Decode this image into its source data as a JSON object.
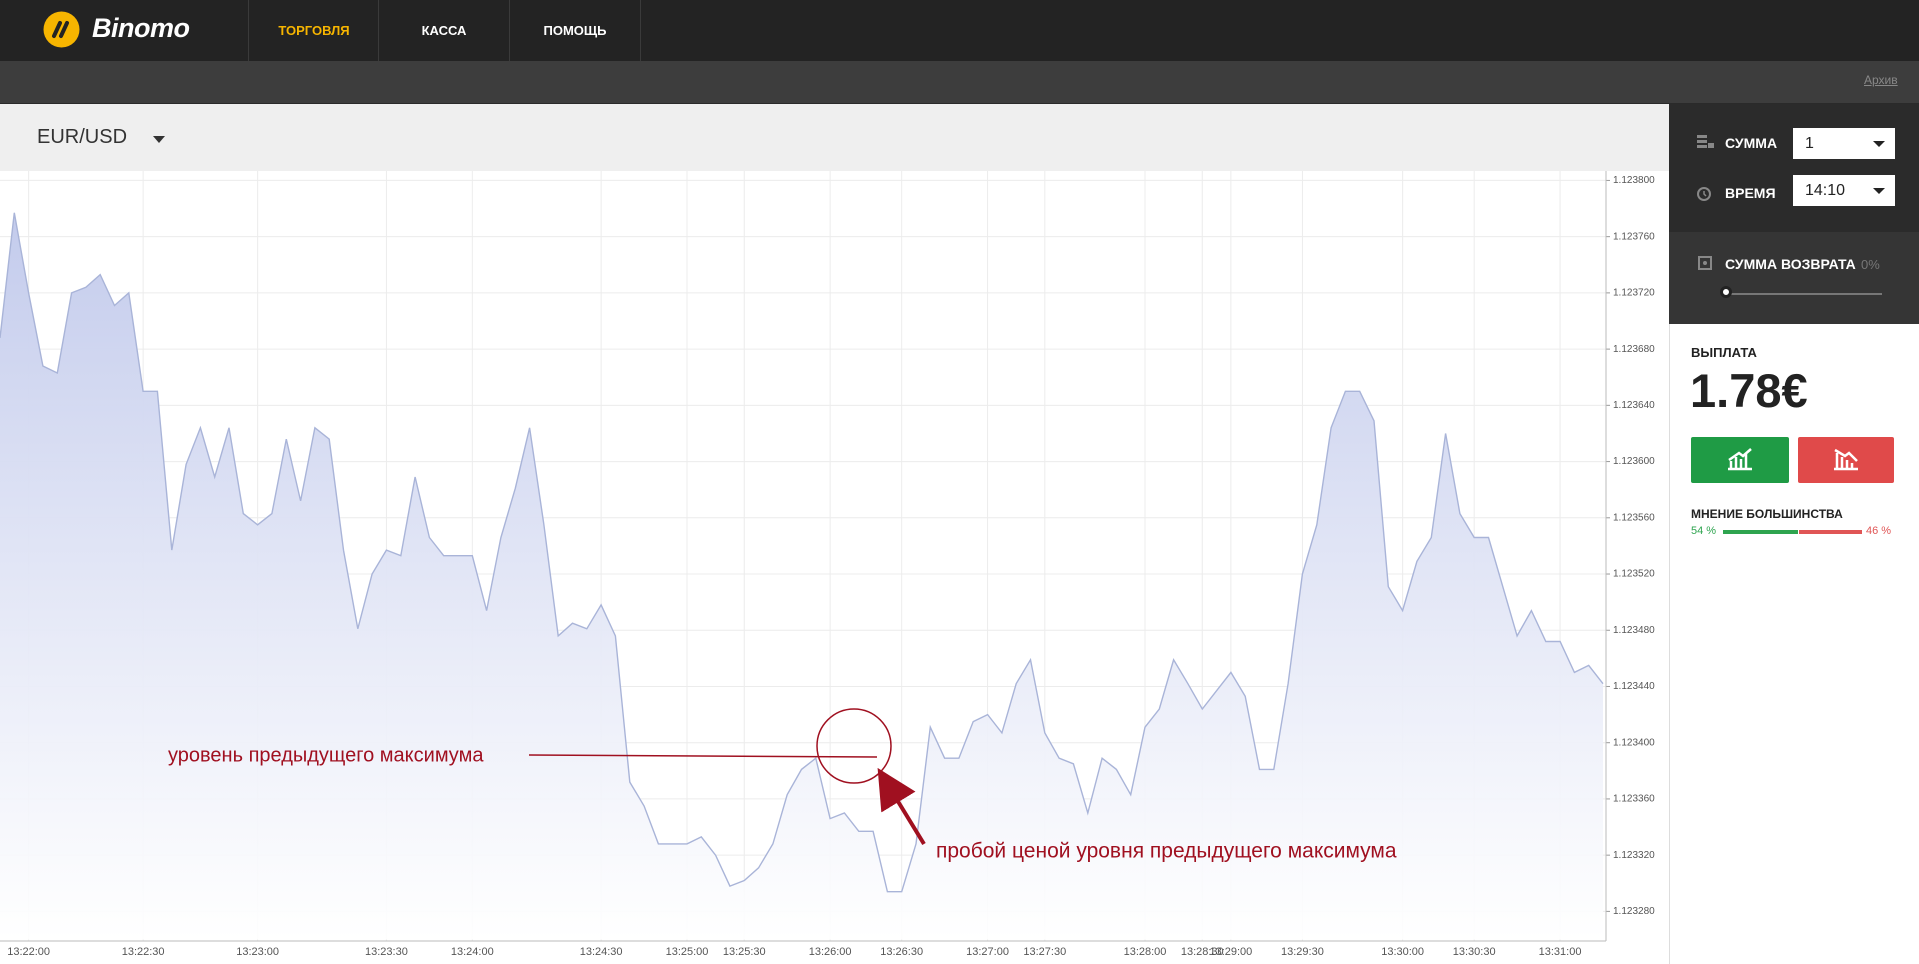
{
  "header": {
    "logo": "Binomo",
    "nav": [
      "ТОРГОВЛЯ",
      "КАССА",
      "ПОМОЩЬ"
    ],
    "archive": "Архив"
  },
  "asset": "EUR/USD",
  "chart_data": {
    "type": "area",
    "color": "#a9b4d8",
    "grid": true,
    "x": [
      null,
      null,
      "13:22:00",
      null,
      null,
      null,
      null,
      null,
      null,
      null,
      "13:22:30",
      null,
      null,
      null,
      null,
      null,
      null,
      null,
      "13:23:00",
      null,
      null,
      null,
      null,
      null,
      null,
      null,
      null,
      "13:23:30",
      null,
      null,
      null,
      null,
      null,
      "13:24:00",
      null,
      null,
      null,
      null,
      null,
      null,
      null,
      null,
      "13:24:30",
      null,
      null,
      null,
      null,
      null,
      "13:25:00",
      null,
      null,
      null,
      "13:25:30",
      null,
      null,
      null,
      null,
      null,
      "13:26:00",
      null,
      null,
      null,
      null,
      "13:26:30",
      null,
      null,
      null,
      null,
      null,
      "13:27:00",
      null,
      null,
      null,
      "13:27:30",
      null,
      null,
      null,
      null,
      null,
      null,
      "13:28:00",
      null,
      null,
      null,
      "13:28:30",
      null,
      "13:29:00",
      null,
      null,
      null,
      null,
      "13:29:30",
      null,
      null,
      null,
      null,
      null,
      null,
      "13:30:00",
      null,
      null,
      null,
      null,
      "13:30:30",
      null,
      null,
      null,
      null,
      null,
      "13:31:00",
      null,
      null,
      null
    ],
    "values": [
      1.123688,
      1.123777,
      1.12372,
      1.123668,
      1.123663,
      1.12372,
      1.123724,
      1.123733,
      1.123711,
      1.12372,
      1.12365,
      1.12365,
      1.123537,
      1.123598,
      1.123624,
      1.123589,
      1.123624,
      1.123563,
      1.123555,
      1.123563,
      1.123616,
      1.123572,
      1.123624,
      1.123616,
      1.123537,
      1.123481,
      1.12352,
      1.123537,
      1.123533,
      1.123589,
      1.123546,
      1.123533,
      1.123533,
      1.123533,
      1.123494,
      1.123546,
      1.123581,
      1.123624,
      1.123555,
      1.123476,
      1.123485,
      1.123481,
      1.123498,
      1.123476,
      1.123372,
      1.123355,
      1.123328,
      1.123328,
      1.123328,
      1.123333,
      1.12332,
      1.123298,
      1.123302,
      1.123311,
      1.123328,
      1.123363,
      1.123381,
      1.123389,
      1.123346,
      1.12335,
      1.123337,
      1.123337,
      1.123294,
      1.123294,
      1.123328,
      1.123411,
      1.123389,
      1.123389,
      1.123415,
      1.12342,
      1.123407,
      1.123442,
      1.123459,
      1.123407,
      1.123389,
      1.123385,
      1.12335,
      1.123389,
      1.123381,
      1.123363,
      1.123411,
      1.123424,
      1.123459,
      1.123442,
      1.123424,
      1.123437,
      1.12345,
      1.123433,
      1.123381,
      1.123381,
      1.123442,
      1.12352,
      1.123555,
      1.123624,
      1.12365,
      1.12365,
      1.123629,
      1.123511,
      1.123494,
      1.123529,
      1.123546,
      1.12362,
      1.123563,
      1.123546,
      1.123546,
      1.123511,
      1.123476,
      1.123494,
      1.123472,
      1.123472,
      1.12345,
      1.123455,
      1.123442
    ],
    "ylim": [
      1.12326,
      1.123805
    ],
    "yticks": [
      {
        "value": 1.1238,
        "label": "1.123800"
      },
      {
        "value": 1.12376,
        "label": "1.123760"
      },
      {
        "value": 1.12372,
        "label": "1.123720"
      },
      {
        "value": 1.12368,
        "label": "1.123680"
      },
      {
        "value": 1.12364,
        "label": "1.123640"
      },
      {
        "value": 1.1236,
        "label": "1.123600"
      },
      {
        "value": 1.12356,
        "label": "1.123560"
      },
      {
        "value": 1.12352,
        "label": "1.123520"
      },
      {
        "value": 1.12348,
        "label": "1.123480"
      },
      {
        "value": 1.12344,
        "label": "1.123440"
      },
      {
        "value": 1.1234,
        "label": "1.123400"
      },
      {
        "value": 1.12336,
        "label": "1.123360"
      },
      {
        "value": 1.12332,
        "label": "1.123320"
      },
      {
        "value": 1.12328,
        "label": "1.123280"
      }
    ],
    "annotations": [
      "уровень предыдущего максимума",
      "пробой ценой уровня предыдущего максимума"
    ]
  },
  "sidebar": {
    "amount_label": "СУММА",
    "amount": "1",
    "time_label": "ВРЕМЯ",
    "time": "14:10",
    "refund_label": "СУММА ВОЗВРАТА",
    "refund": "0%",
    "payout_label": "ВЫПЛАТА",
    "payout": "1.78€",
    "opinion": {
      "title": "МНЕНИЕ БОЛЬШИНСТВА",
      "values": [
        54,
        46
      ],
      "value_labels": [
        "54 %",
        "46 %"
      ],
      "colors": [
        "#2ea44f",
        "#e05555"
      ]
    }
  }
}
